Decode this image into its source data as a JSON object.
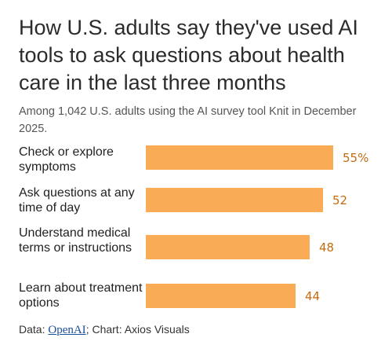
{
  "title": "How U.S. adults say they've used AI tools to ask questions about health care in the last three months",
  "subtitle": "Among 1,042 U.S. adults using the AI survey tool Knit in December 2025.",
  "bar_color": "#f9ab55",
  "value_color": "#c36b10",
  "chart_data": {
    "type": "bar",
    "orientation": "horizontal",
    "categories": [
      "Check or explore symptoms",
      "Ask questions at any time of day",
      "Understand medical terms or instructions",
      "Learn about treatment options"
    ],
    "values": [
      55,
      52,
      48,
      44
    ],
    "value_labels": [
      "55%",
      "52",
      "48",
      "44"
    ],
    "unit": "%",
    "xlim": [
      0,
      55
    ]
  },
  "footer": {
    "prefix": "Data: ",
    "source_link": "OpenAI",
    "suffix": "; Chart: Axios Visuals"
  }
}
